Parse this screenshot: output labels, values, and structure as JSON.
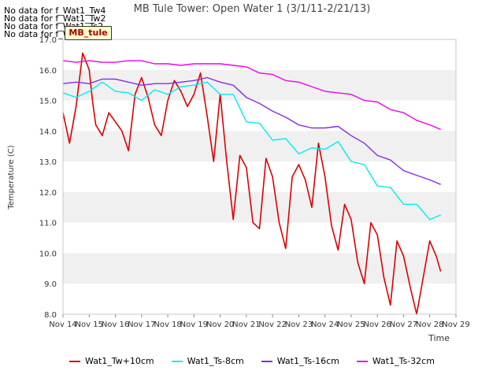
{
  "header": {
    "nodata_messages": [
      "No data for f_Wat1_Tw4",
      "No data for f_Wat1_Tw2",
      "No data for f_Wat1_Ts2",
      "No data for f_Wat1_Tair"
    ],
    "tooltip_label": "MB_tule"
  },
  "chart_data": {
    "type": "line",
    "title": "MB Tule Tower: Open Water 1 (3/1/11-2/21/13)",
    "xlabel": "Time",
    "ylabel": "Temperature (C)",
    "ylim": [
      8.0,
      17.0
    ],
    "xlim": [
      "Nov 14",
      "Nov 29"
    ],
    "x_ticks": [
      "Nov 14",
      "Nov 15",
      "Nov 16",
      "Nov 17",
      "Nov 18",
      "Nov 19",
      "Nov 20",
      "Nov 21",
      "Nov 22",
      "Nov 23",
      "Nov 24",
      "Nov 25",
      "Nov 26",
      "Nov 27",
      "Nov 28",
      "Nov 29"
    ],
    "y_ticks": [
      "8.0",
      "9.0",
      "10.0",
      "11.0",
      "12.0",
      "13.0",
      "14.0",
      "15.0",
      "16.0",
      "17.0"
    ],
    "grid": "horizontal bands",
    "legend_position": "bottom",
    "series": [
      {
        "name": "Wat1_Tw+10cm",
        "color": "#dd0000",
        "x": [
          "Nov 14",
          "Nov 14 06:00",
          "Nov 14 12:00",
          "Nov 14 18:00",
          "Nov 15",
          "Nov 15 03:00",
          "Nov 15 06:00",
          "Nov 15 12:00",
          "Nov 15 18:00",
          "Nov 16",
          "Nov 16 06:00",
          "Nov 16 12:00",
          "Nov 16 18:00",
          "Nov 17",
          "Nov 17 06:00",
          "Nov 17 12:00",
          "Nov 17 18:00",
          "Nov 18",
          "Nov 18 06:00",
          "Nov 18 12:00",
          "Nov 18 18:00",
          "Nov 19",
          "Nov 19 06:00",
          "Nov 19 12:00",
          "Nov 19 18:00",
          "Nov 20",
          "Nov 20 06:00",
          "Nov 20 12:00",
          "Nov 20 18:00",
          "Nov 21",
          "Nov 21 06:00",
          "Nov 21 12:00",
          "Nov 21 18:00",
          "Nov 22",
          "Nov 22 06:00",
          "Nov 22 12:00",
          "Nov 22 18:00",
          "Nov 23",
          "Nov 23 06:00",
          "Nov 23 12:00",
          "Nov 23 18:00",
          "Nov 24",
          "Nov 24 06:00",
          "Nov 24 12:00",
          "Nov 24 18:00",
          "Nov 25",
          "Nov 25 06:00",
          "Nov 25 12:00",
          "Nov 25 18:00",
          "Nov 26",
          "Nov 26 06:00",
          "Nov 26 12:00",
          "Nov 26 18:00",
          "Nov 27",
          "Nov 27 06:00",
          "Nov 27 12:00",
          "Nov 27 18:00",
          "Nov 28",
          "Nov 28 06:00",
          "Nov 28 10:00"
        ],
        "values": [
          14.6,
          13.6,
          14.8,
          16.55,
          16.0,
          15.0,
          14.2,
          13.85,
          14.6,
          14.3,
          14.0,
          13.35,
          15.2,
          15.75,
          15.1,
          14.2,
          13.85,
          15.0,
          15.65,
          15.3,
          14.8,
          15.2,
          15.9,
          14.5,
          13.0,
          15.2,
          13.0,
          11.1,
          13.2,
          12.8,
          11.0,
          10.8,
          13.1,
          12.5,
          11.0,
          10.15,
          12.5,
          12.9,
          12.4,
          11.5,
          13.6,
          12.5,
          10.9,
          10.1,
          11.6,
          11.1,
          9.7,
          9.0,
          11.0,
          10.6,
          9.2,
          8.3,
          10.4,
          9.9,
          8.9,
          8.0,
          9.2,
          10.4,
          9.9,
          9.4
        ]
      },
      {
        "name": "Wat1_Ts-8cm",
        "color": "#00eeee",
        "x": [
          "Nov 14",
          "Nov 14 12:00",
          "Nov 15",
          "Nov 15 12:00",
          "Nov 16",
          "Nov 16 12:00",
          "Nov 17",
          "Nov 17 12:00",
          "Nov 18",
          "Nov 18 12:00",
          "Nov 19",
          "Nov 19 12:00",
          "Nov 20",
          "Nov 20 12:00",
          "Nov 21",
          "Nov 21 12:00",
          "Nov 22",
          "Nov 22 12:00",
          "Nov 23",
          "Nov 23 12:00",
          "Nov 24",
          "Nov 24 12:00",
          "Nov 25",
          "Nov 25 12:00",
          "Nov 26",
          "Nov 26 12:00",
          "Nov 27",
          "Nov 27 12:00",
          "Nov 28",
          "Nov 28 10:00"
        ],
        "values": [
          15.25,
          15.1,
          15.3,
          15.6,
          15.3,
          15.25,
          15.0,
          15.35,
          15.2,
          15.45,
          15.5,
          15.6,
          15.2,
          15.2,
          14.3,
          14.25,
          13.7,
          13.75,
          13.25,
          13.45,
          13.4,
          13.65,
          13.0,
          12.9,
          12.2,
          12.15,
          11.6,
          11.6,
          11.1,
          11.25
        ]
      },
      {
        "name": "Wat1_Ts-16cm",
        "color": "#8a2be2",
        "x": [
          "Nov 14",
          "Nov 14 12:00",
          "Nov 15",
          "Nov 15 12:00",
          "Nov 16",
          "Nov 16 12:00",
          "Nov 17",
          "Nov 17 12:00",
          "Nov 18",
          "Nov 18 12:00",
          "Nov 19",
          "Nov 19 12:00",
          "Nov 20",
          "Nov 20 12:00",
          "Nov 21",
          "Nov 21 12:00",
          "Nov 22",
          "Nov 22 12:00",
          "Nov 23",
          "Nov 23 12:00",
          "Nov 24",
          "Nov 24 12:00",
          "Nov 25",
          "Nov 25 12:00",
          "Nov 26",
          "Nov 26 12:00",
          "Nov 27",
          "Nov 27 12:00",
          "Nov 28",
          "Nov 28 10:00"
        ],
        "values": [
          15.55,
          15.6,
          15.55,
          15.7,
          15.7,
          15.6,
          15.5,
          15.55,
          15.55,
          15.6,
          15.65,
          15.75,
          15.6,
          15.5,
          15.1,
          14.9,
          14.65,
          14.45,
          14.2,
          14.1,
          14.1,
          14.15,
          13.85,
          13.6,
          13.2,
          13.05,
          12.7,
          12.55,
          12.4,
          12.25
        ]
      },
      {
        "name": "Wat1_Ts-32cm",
        "color": "#ee00ee",
        "x": [
          "Nov 14",
          "Nov 14 12:00",
          "Nov 15",
          "Nov 15 12:00",
          "Nov 16",
          "Nov 16 12:00",
          "Nov 17",
          "Nov 17 12:00",
          "Nov 18",
          "Nov 18 12:00",
          "Nov 19",
          "Nov 19 12:00",
          "Nov 20",
          "Nov 20 12:00",
          "Nov 21",
          "Nov 21 12:00",
          "Nov 22",
          "Nov 22 12:00",
          "Nov 23",
          "Nov 23 12:00",
          "Nov 24",
          "Nov 24 12:00",
          "Nov 25",
          "Nov 25 12:00",
          "Nov 26",
          "Nov 26 12:00",
          "Nov 27",
          "Nov 27 12:00",
          "Nov 28",
          "Nov 28 10:00"
        ],
        "values": [
          16.3,
          16.25,
          16.3,
          16.25,
          16.25,
          16.3,
          16.3,
          16.2,
          16.2,
          16.15,
          16.2,
          16.2,
          16.2,
          16.15,
          16.1,
          15.9,
          15.85,
          15.65,
          15.6,
          15.45,
          15.3,
          15.25,
          15.2,
          15.0,
          14.95,
          14.7,
          14.6,
          14.35,
          14.2,
          14.05
        ]
      }
    ]
  }
}
